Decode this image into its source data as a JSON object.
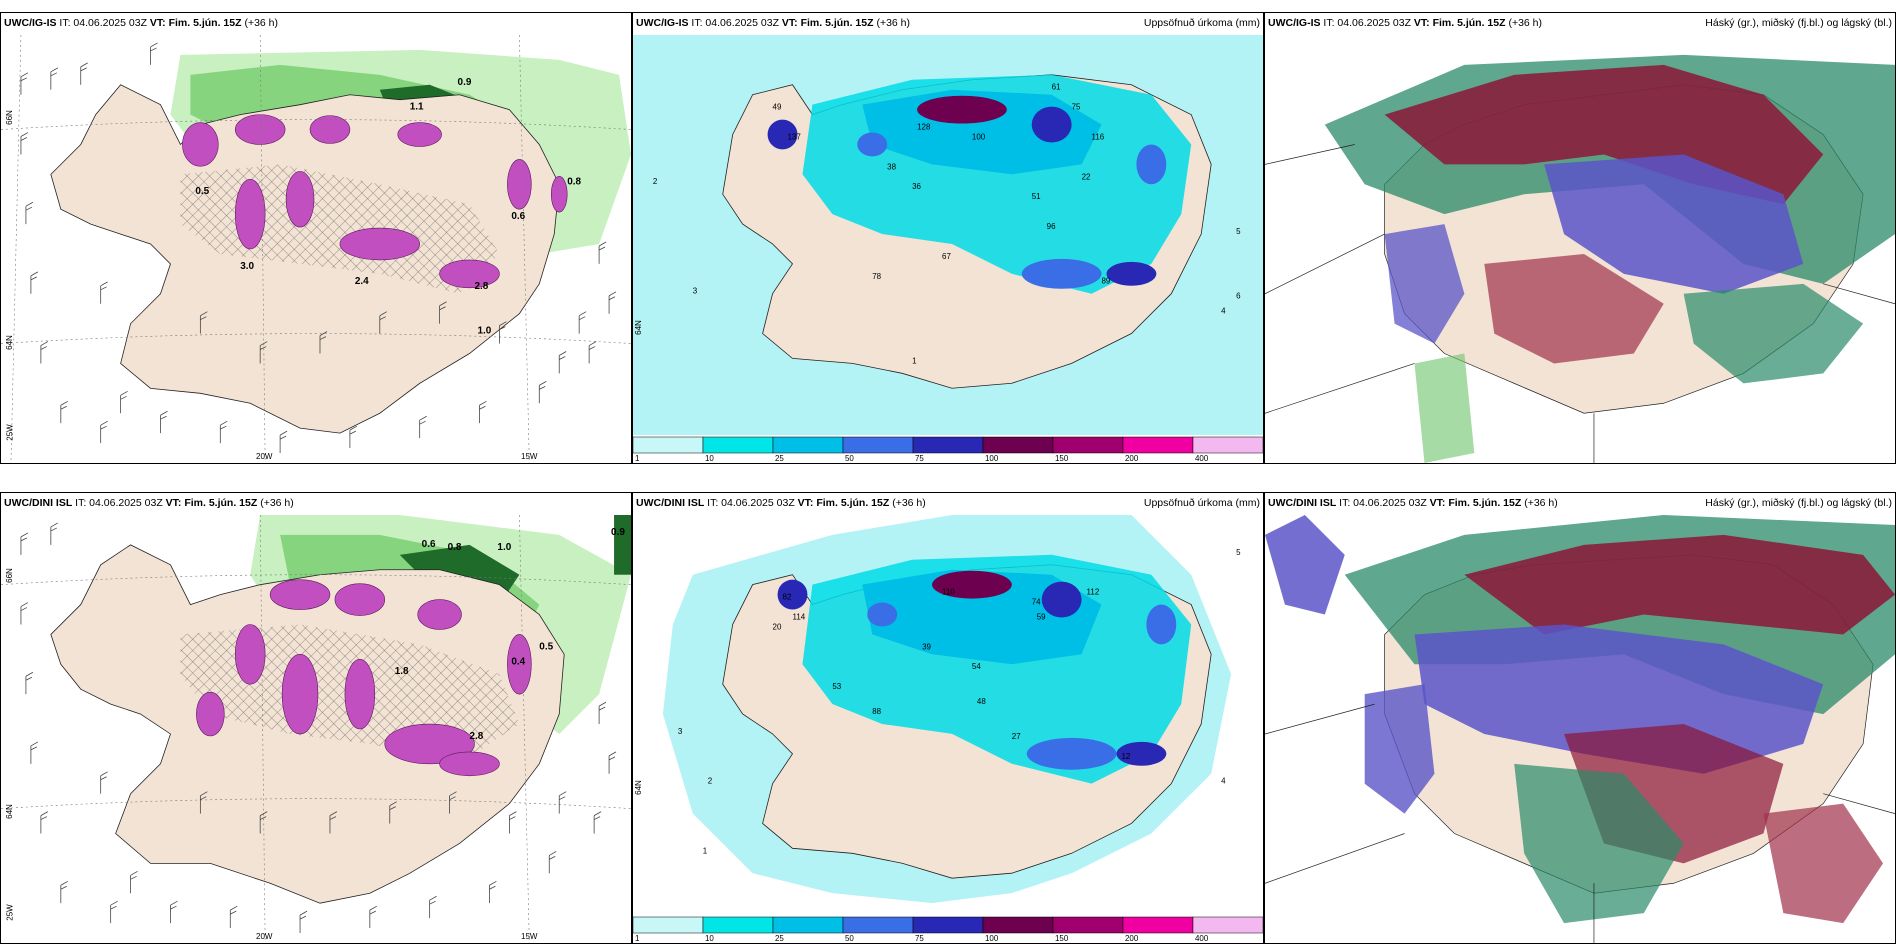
{
  "panels": {
    "top_left": {
      "model": "UWC/IG-IS",
      "it": "IT: 04.06.2025 03Z",
      "vt": "VT: Fim. 5.jún. 15Z",
      "lead": "(+36 h)",
      "right": ""
    },
    "top_mid": {
      "model": "UWC/IG-IS",
      "it": "IT: 04.06.2025 03Z",
      "vt": "VT: Fim. 5.jún. 15Z",
      "lead": "(+36 h)",
      "right": "Uppsöfnuð úrkoma (mm)"
    },
    "top_right": {
      "model": "UWC/IG-IS",
      "it": "IT: 04.06.2025 03Z",
      "vt": "VT: Fim. 5.jún. 15Z",
      "lead": "(+36 h)",
      "right": "Háský (gr.), miðský (fj.bl.) og lágský (bl.)"
    },
    "bot_left": {
      "model": "UWC/DINI ISL",
      "it": "IT: 04.06.2025 03Z",
      "vt": "VT: Fim. 5.jún. 15Z",
      "lead": "(+36 h)",
      "right": ""
    },
    "bot_mid": {
      "model": "UWC/DINI ISL",
      "it": "IT: 04.06.2025 03Z",
      "vt": "VT: Fim. 5.jún. 15Z",
      "lead": "(+36 h)",
      "right": "Uppsöfnuð úrkoma (mm)"
    },
    "bot_right": {
      "model": "UWC/DINI ISL",
      "it": "IT: 04.06.2025 03Z",
      "vt": "VT: Fim. 5.jún. 15Z",
      "lead": "(+36 h)",
      "right": "Háský (gr.), miðský (fj.bl.) og lágský (bl.)"
    }
  },
  "axis_labels": {
    "lat66": "66N",
    "lat64": "64N",
    "lon25": "25W",
    "lon20": "20W",
    "lon15": "15W"
  },
  "colorbar": {
    "ticks": [
      "1",
      "10",
      "25",
      "50",
      "75",
      "100",
      "150",
      "200",
      "400"
    ],
    "colors": [
      "#c8f7f7",
      "#00e6e6",
      "#00bfe6",
      "#3a6ee6",
      "#2828b4",
      "#6e0050",
      "#a0006e",
      "#f000a0",
      "#f4b8f0"
    ]
  },
  "precip_labels_top": [
    "49",
    "137",
    "61",
    "75",
    "116",
    "128",
    "100",
    "22",
    "36",
    "38",
    "51",
    "96",
    "67",
    "78",
    "89",
    "1",
    "2",
    "3",
    "4",
    "5",
    "6"
  ],
  "precip_labels_bot": [
    "82",
    "114",
    "110",
    "112",
    "74",
    "59",
    "20",
    "39",
    "54",
    "48",
    "27",
    "88",
    "53",
    "12",
    "1",
    "2",
    "3",
    "4",
    "5"
  ],
  "left_labels_top": [
    "0.9",
    "1.1",
    "0.8",
    "0.6",
    "1.0",
    "2.4",
    "2.8",
    "3.0",
    "0.5"
  ],
  "left_labels_bot": [
    "0.9",
    "0.6",
    "1.0",
    "0.8",
    "1.8",
    "2.8",
    "0.4",
    "0.5"
  ],
  "colors": {
    "land": "#f2e3d4",
    "pale_green": "#c8f0c0",
    "green": "#6cc36a",
    "dark_green": "#1f6b2a",
    "purple": "#c24fc0",
    "cyan": "#b3f2f5",
    "cloud_red": "#8c1638",
    "cloud_blue": "#5a55c8",
    "cloud_teal": "#2a8a6a"
  }
}
